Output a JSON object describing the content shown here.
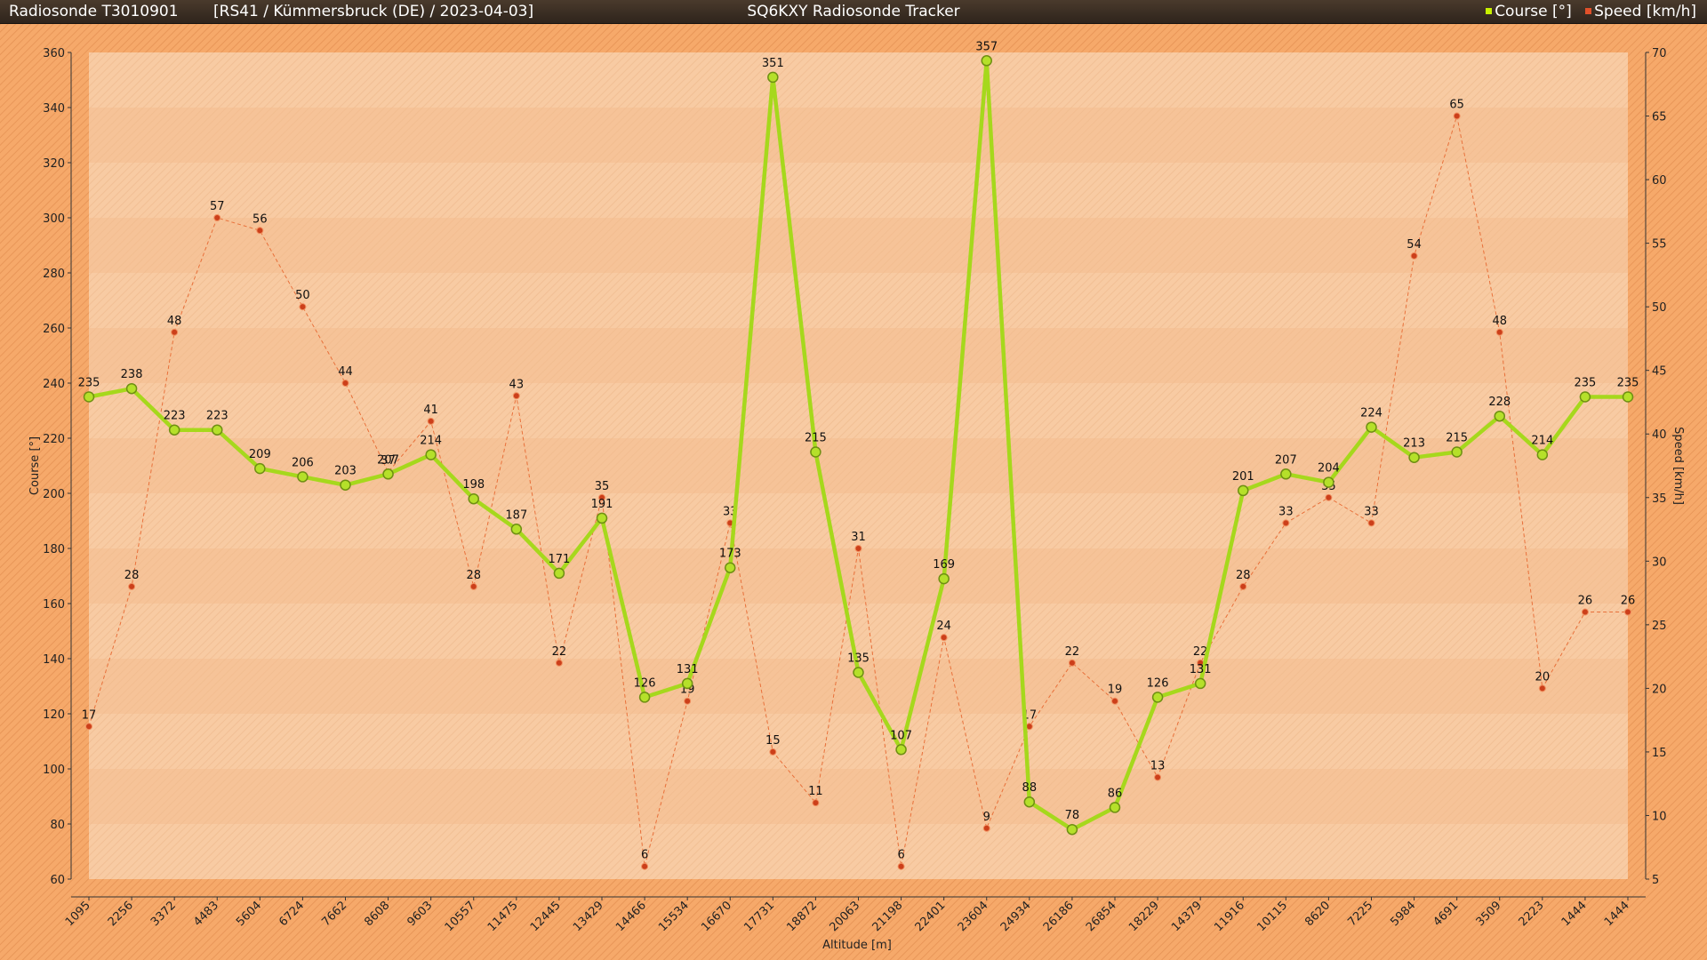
{
  "header": {
    "sonde": "Radiosonde T3010901",
    "subtitle": "[RS41 / Kümmersbruck (DE) / 2023-04-03]",
    "app_title": "SQ6KXY Radiosonde Tracker",
    "legend": [
      {
        "label": "Course [°]",
        "color": "#c8f000"
      },
      {
        "label": "Speed [km/h]",
        "color": "#e0502a"
      }
    ]
  },
  "colors": {
    "background": "#f6a96a",
    "plot_background": "#f7c9a0",
    "course_line": "#a6d81c",
    "course_marker_fill": "#b5e02a",
    "course_marker_stroke": "#6f8f12",
    "speed_line": "#e8703a",
    "speed_marker": "#cc3f1a"
  },
  "chart_data": {
    "type": "line",
    "xlabel": "Altitude [m]",
    "ylabel": "Course [°]",
    "y2label": "Speed [km/h]",
    "ylim": [
      60,
      360
    ],
    "y2lim": [
      5,
      70
    ],
    "yticks": [
      60,
      80,
      100,
      120,
      140,
      160,
      180,
      200,
      220,
      240,
      260,
      280,
      300,
      320,
      340,
      360
    ],
    "y2ticks": [
      5,
      10,
      15,
      20,
      25,
      30,
      35,
      40,
      45,
      50,
      55,
      60,
      65,
      70
    ],
    "grid": false,
    "legend_position": "top-right",
    "categories": [
      "1095",
      "2256",
      "3372",
      "4483",
      "5604",
      "6724",
      "7662",
      "8608",
      "9603",
      "10557",
      "11475",
      "12445",
      "13429",
      "14466",
      "15534",
      "16670",
      "17731",
      "18872",
      "20063",
      "21198",
      "22401",
      "23604",
      "24934",
      "26186",
      "26854",
      "18229",
      "14379",
      "11916",
      "10115",
      "8620",
      "7225",
      "5984",
      "4691",
      "3509",
      "2223",
      "1444",
      "1444"
    ],
    "series": [
      {
        "name": "Course [°]",
        "axis": "left",
        "values": [
          235,
          238,
          223,
          223,
          209,
          206,
          203,
          207,
          214,
          198,
          187,
          171,
          191,
          126,
          131,
          173,
          351,
          215,
          135,
          107,
          169,
          357,
          88,
          78,
          86,
          126,
          131,
          201,
          207,
          204,
          224,
          213,
          215,
          228,
          214,
          235,
          235
        ]
      },
      {
        "name": "Speed [km/h]",
        "axis": "right",
        "values": [
          17,
          28,
          48,
          57,
          56,
          50,
          44,
          37,
          41,
          28,
          43,
          22,
          35,
          6,
          19,
          33,
          15,
          11,
          31,
          6,
          24,
          9,
          17,
          22,
          19,
          13,
          22,
          28,
          33,
          35,
          33,
          54,
          65,
          48,
          20,
          26,
          26
        ]
      }
    ]
  }
}
